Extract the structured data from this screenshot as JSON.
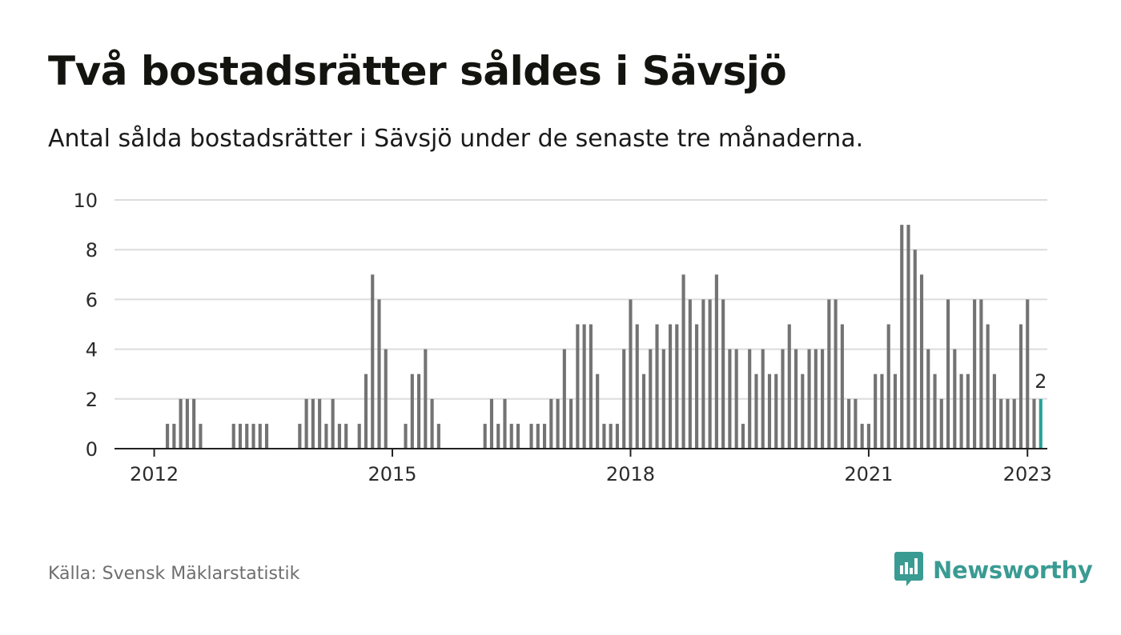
{
  "title": "Två bostadsrätter såldes i Sävsjö",
  "subtitle": "Antal sålda bostadsrätter i Sävsjö under de senaste tre månaderna.",
  "source": "Källa: Svensk Mäklarstatistik",
  "brand": {
    "name": "Newsworthy",
    "logo_icon": "newsworthy-bar-chart-icon",
    "color": "#3a9b93"
  },
  "chart_data": {
    "type": "bar",
    "title": "Två bostadsrätter såldes i Sävsjö",
    "xlabel": "",
    "ylabel": "",
    "ylim": [
      0,
      10
    ],
    "yticks": [
      "0",
      "2",
      "4",
      "6",
      "8",
      "10"
    ],
    "xticks": [
      "2012",
      "2015",
      "2018",
      "2021",
      "2023"
    ],
    "grid": true,
    "bar_color": "#737373",
    "highlight_color": "#2aa198",
    "highlight_label": "2",
    "x_start": "2011-07",
    "x_end": "2023-04",
    "first_bar": "2012-03",
    "values": [
      1,
      1,
      2,
      2,
      2,
      1,
      0,
      0,
      0,
      0,
      1,
      1,
      1,
      1,
      1,
      1,
      0,
      0,
      0,
      0,
      1,
      2,
      2,
      2,
      1,
      2,
      1,
      1,
      0,
      1,
      3,
      7,
      6,
      4,
      0,
      0,
      1,
      3,
      3,
      4,
      2,
      1,
      0,
      0,
      0,
      0,
      0,
      0,
      1,
      2,
      1,
      2,
      1,
      1,
      0,
      1,
      1,
      1,
      2,
      2,
      4,
      2,
      5,
      5,
      5,
      3,
      1,
      1,
      1,
      4,
      6,
      5,
      3,
      4,
      5,
      4,
      5,
      5,
      7,
      6,
      5,
      6,
      6,
      7,
      6,
      4,
      4,
      1,
      4,
      3,
      4,
      3,
      3,
      4,
      5,
      4,
      3,
      4,
      4,
      4,
      6,
      6,
      5,
      2,
      2,
      1,
      1,
      3,
      3,
      5,
      3,
      9,
      9,
      8,
      7,
      4,
      3,
      2,
      6,
      4,
      3,
      3,
      6,
      6,
      5,
      3,
      2,
      2,
      2,
      5,
      6,
      2,
      2
    ]
  }
}
